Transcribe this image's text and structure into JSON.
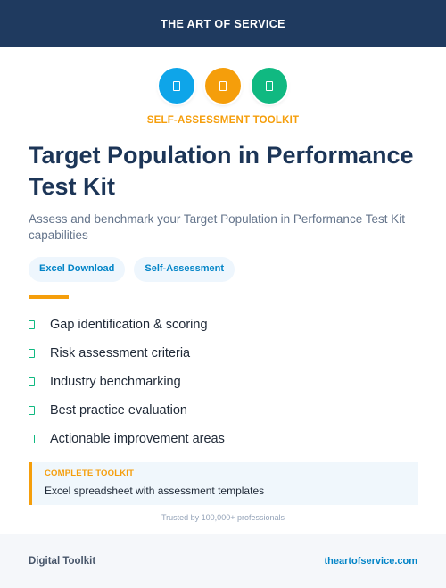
{
  "header": {
    "title": "THE ART OF SERVICE"
  },
  "icons": [
    "document-icon",
    "document-icon",
    "document-icon"
  ],
  "kicker": "SELF-ASSESSMENT TOOLKIT",
  "title": "Target Population in Performance Test Kit",
  "subtitle": "Assess and benchmark your Target Population in Performance Test Kit capabilities",
  "tags": [
    "Excel Download",
    "Self-Assessment"
  ],
  "features": [
    "Gap identification & scoring",
    "Risk assessment criteria",
    "Industry benchmarking",
    "Best practice evaluation",
    "Actionable improvement areas"
  ],
  "callout": {
    "label": "COMPLETE TOOLKIT",
    "text": "Excel spreadsheet with assessment templates"
  },
  "trusted": "Trusted by 100,000+ professionals",
  "footer": {
    "left": "Digital Toolkit",
    "right": "theartofservice.com"
  },
  "colors": {
    "navy": "#1f3a5f",
    "blue": "#0ea5e9",
    "orange": "#f59e0b",
    "green": "#10b981"
  }
}
